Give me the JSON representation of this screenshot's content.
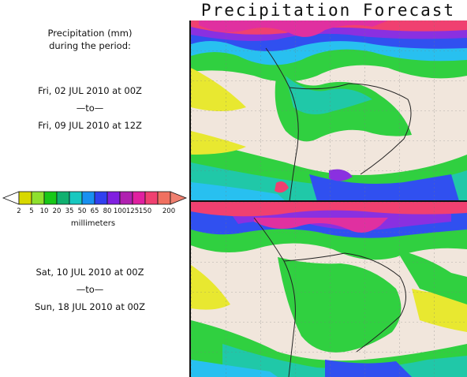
{
  "header": {
    "title": "Precipitation Forecast"
  },
  "panel_text": {
    "heading_line1": "Precipitation (mm)",
    "heading_line2": "during the period:"
  },
  "period1": {
    "start": "Fri, 02 JUL 2010 at 00Z",
    "sep": "—to—",
    "end": "Fri, 09 JUL 2010 at 12Z"
  },
  "period2": {
    "start": "Sat, 10 JUL 2010 at 00Z",
    "sep": "—to—",
    "end": "Sun, 18 JUL 2010 at 00Z"
  },
  "legend": {
    "unit_label": "millimeters",
    "ticks": [
      "2",
      "5",
      "10",
      "20",
      "35",
      "50",
      "65",
      "80",
      "100",
      "125",
      "150",
      "200"
    ],
    "colors": [
      "#d8d800",
      "#8ee02e",
      "#18c818",
      "#10b070",
      "#18c8c0",
      "#1890f0",
      "#3040f0",
      "#8020e0",
      "#b020b0",
      "#e020a0",
      "#f04070",
      "#f07060"
    ]
  },
  "map_colors": {
    "background": "#f1e6dc",
    "yellow": "#e8e830",
    "green": "#30d040",
    "teal": "#20c8a8",
    "cyan": "#28c0f0",
    "blue": "#3050f0",
    "purple": "#8a30e0",
    "magenta": "#e030a0",
    "red": "#f04070"
  }
}
